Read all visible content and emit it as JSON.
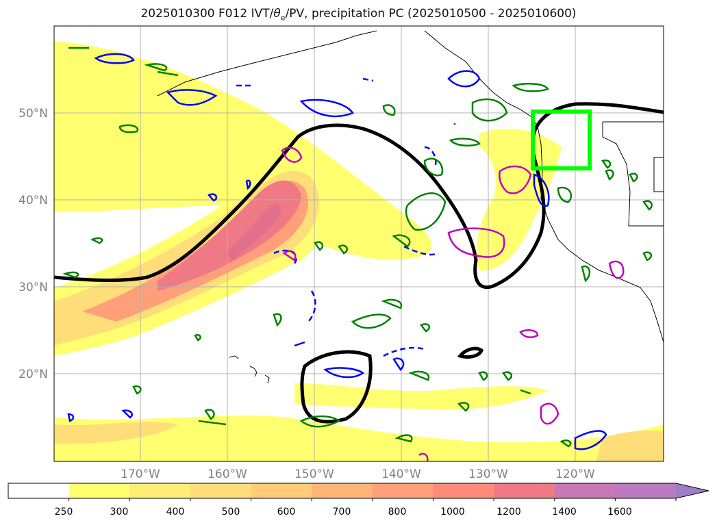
{
  "title": {
    "prefix": "2025010300 F012 IVT/",
    "theta": "θ",
    "theta_sub": "e",
    "suffix": "/PV, precipitation PC (2025010500 - 2025010600)"
  },
  "map": {
    "lon_labels": [
      "170°W",
      "160°W",
      "150°W",
      "140°W",
      "130°W",
      "120°W"
    ],
    "lat_labels": [
      "50°N",
      "40°N",
      "30°N",
      "20°N"
    ],
    "grid": true
  },
  "colorbar": {
    "ticks": [
      "250",
      "300",
      "400",
      "500",
      "600",
      "700",
      "800",
      "1000",
      "1200",
      "1400",
      "1600"
    ],
    "colors": [
      "#ffffff",
      "#ffff70",
      "#ffee75",
      "#ffdd78",
      "#ffcc78",
      "#ffb478",
      "#ffa07a",
      "#ff8c7a",
      "#ef7a85",
      "#c878b4",
      "#b87ac0",
      "#a07cc8"
    ],
    "extend": "max"
  },
  "overlay_colors": {
    "theta_e_contour": "#000000",
    "pv_positive": "#0000ff",
    "pv_negative": "#008000",
    "precip_pc": "#c000c0",
    "target_box": "#00ff00"
  }
}
